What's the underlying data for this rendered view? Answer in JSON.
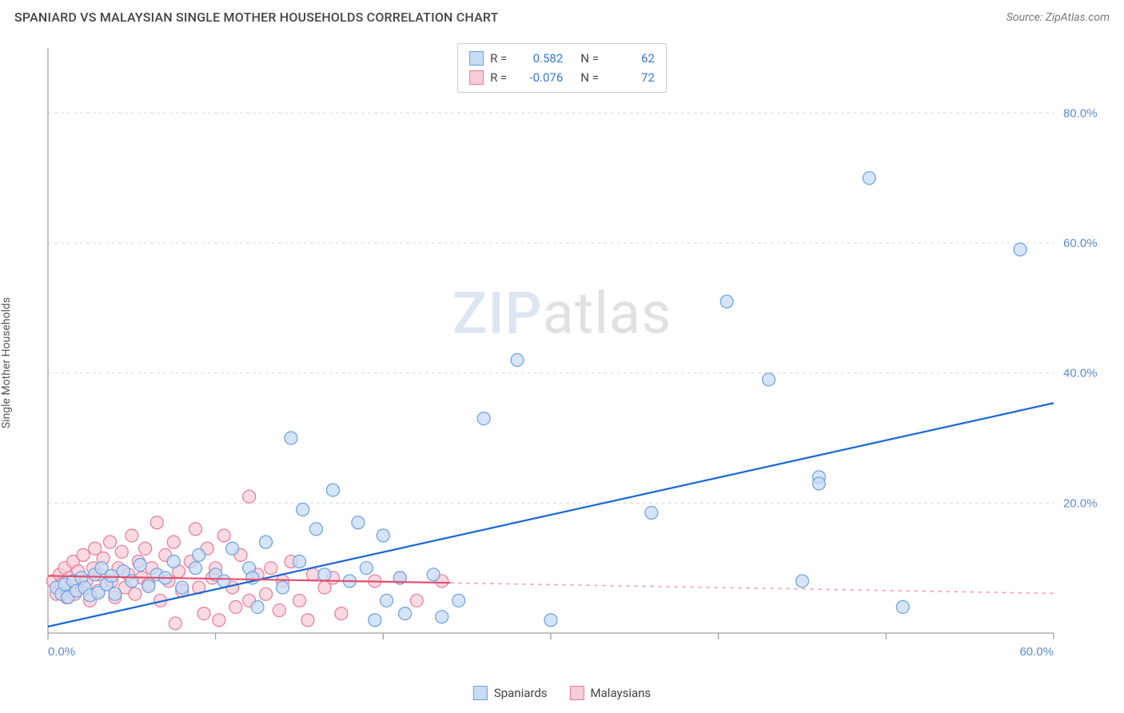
{
  "header": {
    "title": "SPANIARD VS MALAYSIAN SINGLE MOTHER HOUSEHOLDS CORRELATION CHART",
    "source": "Source: ZipAtlas.com"
  },
  "ylabel": "Single Mother Households",
  "watermark": {
    "left": "ZIP",
    "right": "atlas"
  },
  "chart": {
    "type": "scatter",
    "background_color": "#ffffff",
    "grid_color": "#d8d8d8",
    "grid_dash": "4 4",
    "axis_color": "#888888",
    "xlim": [
      0,
      60
    ],
    "ylim": [
      0,
      90
    ],
    "xtick_step": 10,
    "ytick_step": 20,
    "xtick_labels": [
      "0.0%",
      "",
      "",
      "",
      "",
      "",
      "60.0%"
    ],
    "ytick_labels": [
      "",
      "20.0%",
      "40.0%",
      "60.0%",
      "80.0%"
    ],
    "label_color": "#5a8bd6",
    "label_fontsize": 15,
    "marker_radius": 8,
    "marker_stroke_width": 1.2,
    "series": [
      {
        "name": "Spaniards",
        "fill": "#c7dbf5",
        "stroke": "#6aa0e0",
        "line_color": "#1b66d2",
        "line_width": 2.2,
        "trend": {
          "slope": 0.573,
          "intercept": 1.0,
          "solid_to_x": 60
        },
        "r": "0.582",
        "n": "62",
        "points": [
          [
            0.5,
            7
          ],
          [
            0.8,
            6
          ],
          [
            1,
            7.5
          ],
          [
            1.2,
            5.5
          ],
          [
            1.5,
            8
          ],
          [
            1.7,
            6.5
          ],
          [
            2,
            8.5
          ],
          [
            2.2,
            7
          ],
          [
            2.5,
            5.8
          ],
          [
            2.8,
            9
          ],
          [
            3,
            6.2
          ],
          [
            3.2,
            10
          ],
          [
            3.5,
            7.5
          ],
          [
            3.8,
            8.8
          ],
          [
            4,
            6
          ],
          [
            4.5,
            9.5
          ],
          [
            5,
            8
          ],
          [
            5.5,
            10.5
          ],
          [
            6,
            7.2
          ],
          [
            6.5,
            9
          ],
          [
            7,
            8.5
          ],
          [
            7.5,
            11
          ],
          [
            8,
            7
          ],
          [
            8.8,
            10
          ],
          [
            9,
            12
          ],
          [
            10,
            9
          ],
          [
            10.5,
            8
          ],
          [
            11,
            13
          ],
          [
            12,
            10
          ],
          [
            12.2,
            8.5
          ],
          [
            12.5,
            4
          ],
          [
            13,
            14
          ],
          [
            14,
            7
          ],
          [
            14.5,
            30
          ],
          [
            15,
            11
          ],
          [
            15.2,
            19
          ],
          [
            16,
            16
          ],
          [
            16.5,
            9
          ],
          [
            17,
            22
          ],
          [
            18,
            8
          ],
          [
            18.5,
            17
          ],
          [
            19,
            10
          ],
          [
            19.5,
            2
          ],
          [
            20,
            15
          ],
          [
            20.2,
            5
          ],
          [
            21,
            8.5
          ],
          [
            21.3,
            3
          ],
          [
            23,
            9
          ],
          [
            23.5,
            2.5
          ],
          [
            24.5,
            5
          ],
          [
            26,
            33
          ],
          [
            28,
            42
          ],
          [
            30,
            2
          ],
          [
            36,
            18.5
          ],
          [
            40.5,
            51
          ],
          [
            43,
            39
          ],
          [
            45,
            8
          ],
          [
            46,
            24
          ],
          [
            46,
            23
          ],
          [
            49,
            70
          ],
          [
            51,
            4
          ],
          [
            58,
            59
          ]
        ]
      },
      {
        "name": "Malaysians",
        "fill": "#f7cdd7",
        "stroke": "#e87a9a",
        "line_color": "#e2506f",
        "line_width": 2.2,
        "trend": {
          "slope": -0.045,
          "intercept": 8.8,
          "solid_to_x": 24
        },
        "r": "-0.076",
        "n": "72",
        "points": [
          [
            0.3,
            8
          ],
          [
            0.5,
            6
          ],
          [
            0.7,
            9
          ],
          [
            0.8,
            7.5
          ],
          [
            1,
            10
          ],
          [
            1.1,
            5.5
          ],
          [
            1.3,
            8.5
          ],
          [
            1.5,
            11
          ],
          [
            1.6,
            6
          ],
          [
            1.8,
            9.5
          ],
          [
            2,
            7
          ],
          [
            2.1,
            12
          ],
          [
            2.3,
            8
          ],
          [
            2.5,
            5
          ],
          [
            2.7,
            10
          ],
          [
            2.8,
            13
          ],
          [
            3,
            6.5
          ],
          [
            3.1,
            9
          ],
          [
            3.3,
            11.5
          ],
          [
            3.5,
            7.5
          ],
          [
            3.7,
            14
          ],
          [
            3.8,
            8
          ],
          [
            4,
            5.5
          ],
          [
            4.2,
            10
          ],
          [
            4.4,
            12.5
          ],
          [
            4.6,
            7
          ],
          [
            4.8,
            9
          ],
          [
            5,
            15
          ],
          [
            5.2,
            6
          ],
          [
            5.4,
            11
          ],
          [
            5.6,
            8.5
          ],
          [
            5.8,
            13
          ],
          [
            6,
            7.5
          ],
          [
            6.2,
            10
          ],
          [
            6.5,
            17
          ],
          [
            6.7,
            5
          ],
          [
            7,
            12
          ],
          [
            7.2,
            8
          ],
          [
            7.5,
            14
          ],
          [
            7.6,
            1.5
          ],
          [
            7.8,
            9.5
          ],
          [
            8,
            6.5
          ],
          [
            8.5,
            11
          ],
          [
            8.8,
            16
          ],
          [
            9,
            7
          ],
          [
            9.3,
            3
          ],
          [
            9.5,
            13
          ],
          [
            9.8,
            8.5
          ],
          [
            10,
            10
          ],
          [
            10.2,
            2
          ],
          [
            10.5,
            15
          ],
          [
            11,
            7
          ],
          [
            11.2,
            4
          ],
          [
            11.5,
            12
          ],
          [
            12,
            5
          ],
          [
            12,
            21
          ],
          [
            12.5,
            9
          ],
          [
            13,
            6
          ],
          [
            13.3,
            10
          ],
          [
            13.8,
            3.5
          ],
          [
            14,
            8
          ],
          [
            14.5,
            11
          ],
          [
            15,
            5
          ],
          [
            15.5,
            2
          ],
          [
            15.8,
            9
          ],
          [
            16.5,
            7
          ],
          [
            17,
            8.5
          ],
          [
            17.5,
            3
          ],
          [
            19.5,
            8
          ],
          [
            21,
            8.5
          ],
          [
            22,
            5
          ],
          [
            23.5,
            8
          ]
        ]
      }
    ]
  },
  "legend_top": {
    "r_label": "R =",
    "n_label": "N ="
  },
  "legend_bottom": {
    "items": [
      "Spaniards",
      "Malaysians"
    ]
  }
}
